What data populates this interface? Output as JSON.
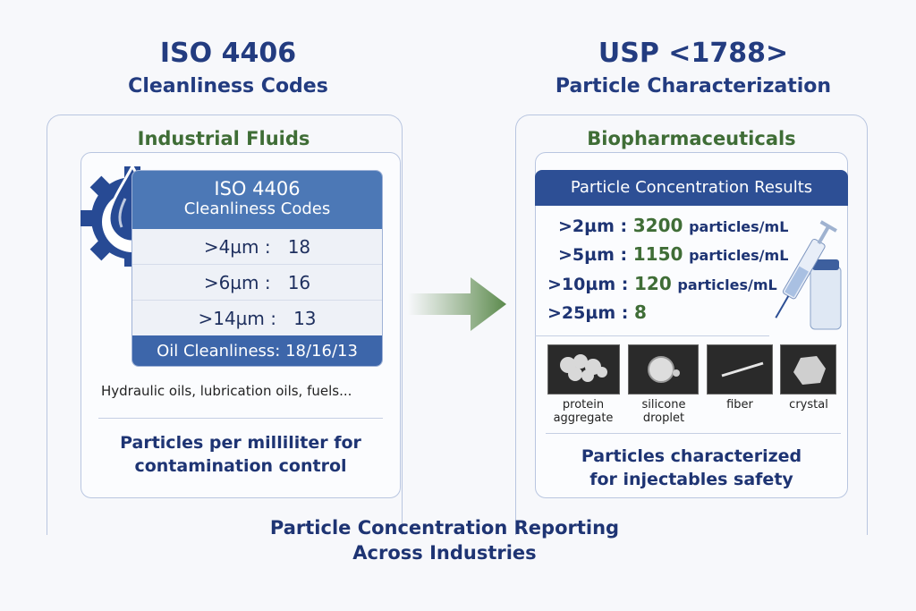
{
  "left": {
    "title": "ISO 4406",
    "subtitle": "Cleanliness Codes",
    "panel_title": "Industrial Fluids",
    "table": {
      "header_line1": "ISO 4406",
      "header_line2": "Cleanliness Codes",
      "rows": [
        {
          "size": ">4µm :",
          "code": "18"
        },
        {
          "size": ">6µm :",
          "code": "16"
        },
        {
          "size": ">14µm :",
          "code": "13"
        }
      ],
      "footer": "Oil Cleanliness: 18/16/13"
    },
    "examples": "Hydraulic oils, lubrication oils, fuels...",
    "caption_line1": "Particles per milliliter for",
    "caption_line2": "contamination control"
  },
  "right": {
    "title": "USP <1788>",
    "subtitle": "Particle Characterization",
    "panel_title": "Biopharmaceuticals",
    "results": {
      "header": "Particle Concentration Results",
      "rows": [
        {
          "size": ">2µm :",
          "value": "3200",
          "unit": "particles/mL"
        },
        {
          "size": ">5µm :",
          "value": "1150",
          "unit": "particles/mL"
        },
        {
          "size": ">10µm :",
          "value": "120",
          "unit": "particles/mL"
        },
        {
          "size": ">25µm :",
          "value": "8",
          "unit": ""
        }
      ]
    },
    "particle_types": [
      {
        "line1": "protein",
        "line2": "aggregate"
      },
      {
        "line1": "silicone",
        "line2": "droplet"
      },
      {
        "line1": "fiber",
        "line2": ""
      },
      {
        "line1": "crystal",
        "line2": ""
      }
    ],
    "caption_line1": "Particles characterized",
    "caption_line2": "for injectables safety"
  },
  "footer": {
    "line1": "Particle Concentration Reporting",
    "line2": "Across Industries"
  },
  "colors": {
    "navy": "#233c80",
    "green": "#3f6d36",
    "table_blue": "#4a76b5"
  },
  "icons": [
    "gear-droplet-icon",
    "arrow-right-icon",
    "syringe-vial-icon"
  ]
}
